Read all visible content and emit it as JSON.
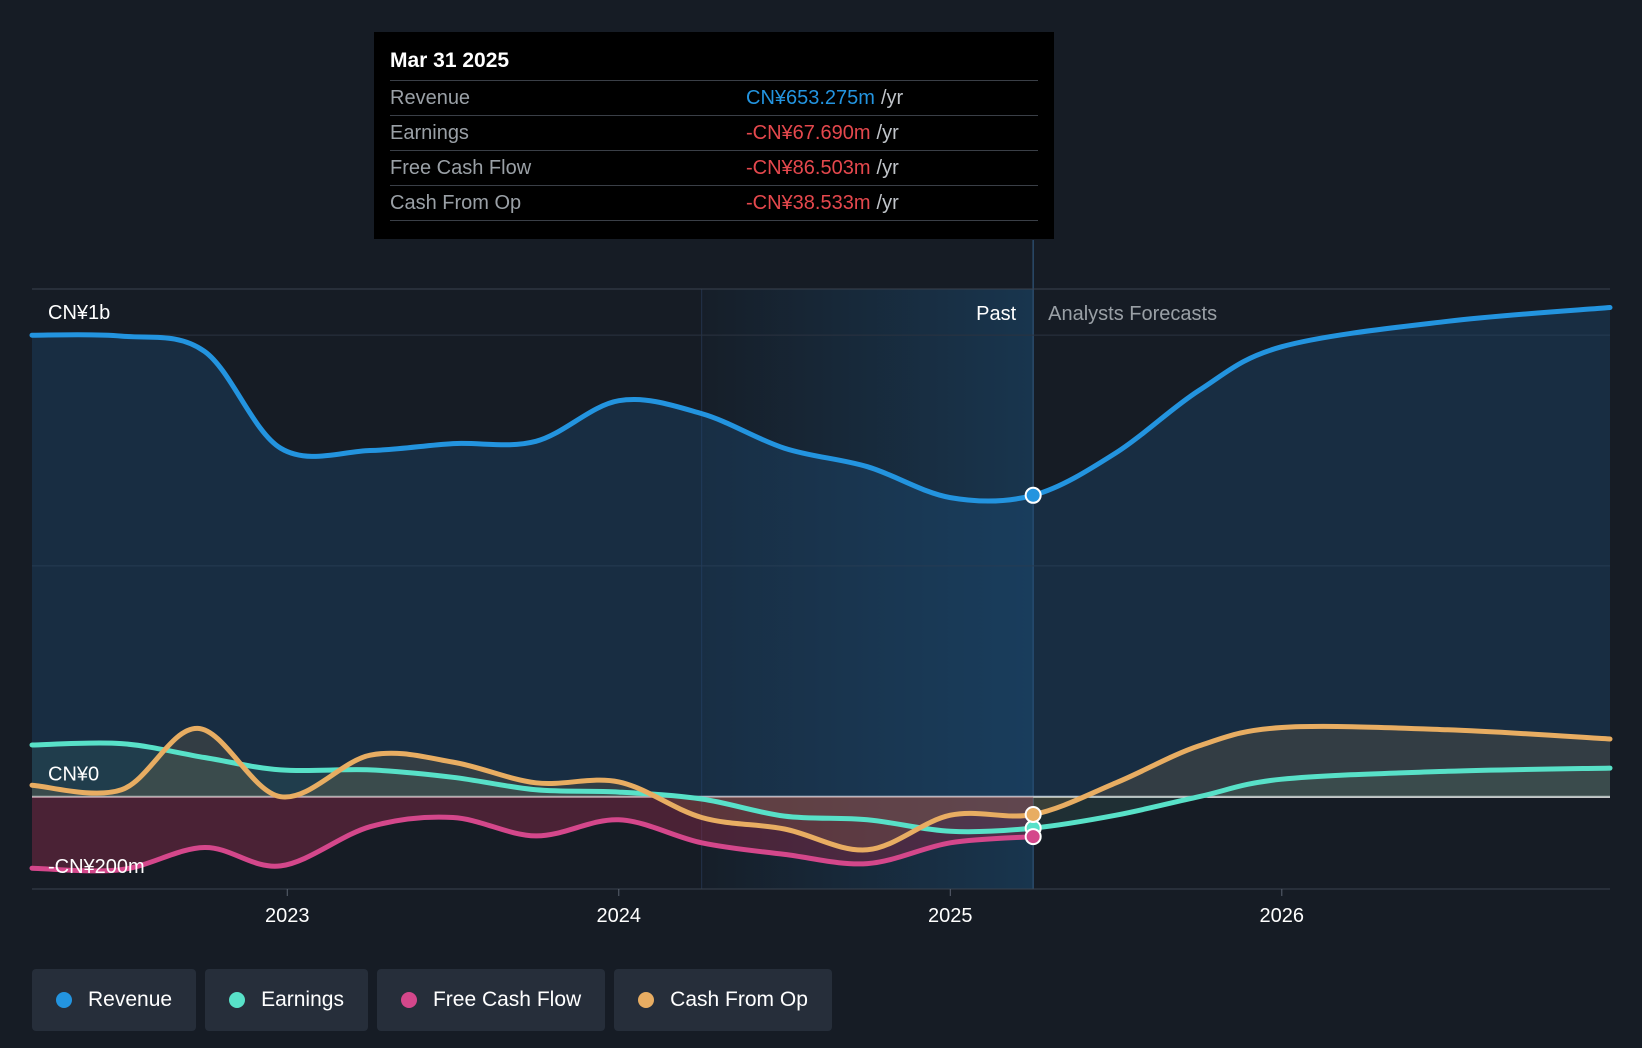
{
  "chart_data": {
    "type": "area",
    "title": "",
    "y_unit": "CN¥ (millions)",
    "ylim": [
      -200,
      1100
    ],
    "y_tick_labels": [
      {
        "value": 1000,
        "label": "CN¥1b"
      },
      {
        "value": 0,
        "label": "CN¥0"
      },
      {
        "value": -200,
        "label": "-CN¥200m"
      }
    ],
    "xlim": [
      2022.23,
      2026.99
    ],
    "x_ticks": [
      {
        "value": 2023.0,
        "label": "2023"
      },
      {
        "value": 2024.0,
        "label": "2024"
      },
      {
        "value": 2025.0,
        "label": "2025"
      },
      {
        "value": 2026.0,
        "label": "2026"
      }
    ],
    "highlight_start": 2024.25,
    "past_end": 2025.25,
    "past_label": "Past",
    "forecast_label": "Analysts Forecasts",
    "series": [
      {
        "name": "Revenue",
        "key": "revenue",
        "color": "#2394df",
        "points": [
          [
            2022.23,
            1000
          ],
          [
            2022.5,
            998
          ],
          [
            2022.75,
            965
          ],
          [
            2022.98,
            755
          ],
          [
            2023.25,
            750
          ],
          [
            2023.5,
            765
          ],
          [
            2023.75,
            770
          ],
          [
            2024.0,
            858
          ],
          [
            2024.25,
            830
          ],
          [
            2024.5,
            755
          ],
          [
            2024.75,
            715
          ],
          [
            2025.0,
            648
          ],
          [
            2025.25,
            653
          ],
          [
            2025.5,
            745
          ],
          [
            2025.75,
            880
          ],
          [
            2026.0,
            975
          ],
          [
            2026.5,
            1030
          ],
          [
            2026.99,
            1060
          ]
        ]
      },
      {
        "name": "Earnings",
        "key": "earnings",
        "color": "#58e1c8",
        "points": [
          [
            2022.23,
            112
          ],
          [
            2022.5,
            115
          ],
          [
            2022.75,
            85
          ],
          [
            2022.98,
            58
          ],
          [
            2023.25,
            58
          ],
          [
            2023.5,
            42
          ],
          [
            2023.75,
            15
          ],
          [
            2024.0,
            10
          ],
          [
            2024.25,
            -5
          ],
          [
            2024.5,
            -42
          ],
          [
            2024.75,
            -50
          ],
          [
            2025.0,
            -75
          ],
          [
            2025.25,
            -68
          ],
          [
            2025.5,
            -40
          ],
          [
            2025.75,
            0
          ],
          [
            2026.0,
            38
          ],
          [
            2026.5,
            55
          ],
          [
            2026.99,
            62
          ]
        ]
      },
      {
        "name": "Free Cash Flow",
        "key": "fcf",
        "color": "#d4478b",
        "points": [
          [
            2022.23,
            -155
          ],
          [
            2022.5,
            -158
          ],
          [
            2022.75,
            -110
          ],
          [
            2022.98,
            -150
          ],
          [
            2023.25,
            -65
          ],
          [
            2023.5,
            -45
          ],
          [
            2023.75,
            -85
          ],
          [
            2024.0,
            -50
          ],
          [
            2024.25,
            -100
          ],
          [
            2024.5,
            -125
          ],
          [
            2024.75,
            -145
          ],
          [
            2025.0,
            -100
          ],
          [
            2025.25,
            -86.5
          ]
        ]
      },
      {
        "name": "Cash From Op",
        "key": "cfo",
        "color": "#e8ad62",
        "points": [
          [
            2022.23,
            25
          ],
          [
            2022.5,
            15
          ],
          [
            2022.73,
            148
          ],
          [
            2022.98,
            0
          ],
          [
            2023.25,
            90
          ],
          [
            2023.5,
            75
          ],
          [
            2023.75,
            30
          ],
          [
            2024.0,
            32
          ],
          [
            2024.25,
            -45
          ],
          [
            2024.5,
            -70
          ],
          [
            2024.75,
            -115
          ],
          [
            2025.0,
            -40
          ],
          [
            2025.25,
            -38.5
          ],
          [
            2025.5,
            30
          ],
          [
            2025.75,
            110
          ],
          [
            2026.0,
            150
          ],
          [
            2026.5,
            145
          ],
          [
            2026.99,
            125
          ]
        ]
      }
    ]
  },
  "tooltip": {
    "date": "Mar 31 2025",
    "rows": [
      {
        "name": "Revenue",
        "value": "CN¥653.275m",
        "unit": "/yr",
        "color": "#2394df"
      },
      {
        "name": "Earnings",
        "value": "-CN¥67.690m",
        "unit": "/yr",
        "color": "#e5484d"
      },
      {
        "name": "Free Cash Flow",
        "value": "-CN¥86.503m",
        "unit": "/yr",
        "color": "#e5484d"
      },
      {
        "name": "Cash From Op",
        "value": "-CN¥38.533m",
        "unit": "/yr",
        "color": "#e5484d"
      }
    ]
  },
  "legend": [
    {
      "label": "Revenue",
      "color": "#2394df"
    },
    {
      "label": "Earnings",
      "color": "#58e1c8"
    },
    {
      "label": "Free Cash Flow",
      "color": "#d4478b"
    },
    {
      "label": "Cash From Op",
      "color": "#e8ad62"
    }
  ]
}
